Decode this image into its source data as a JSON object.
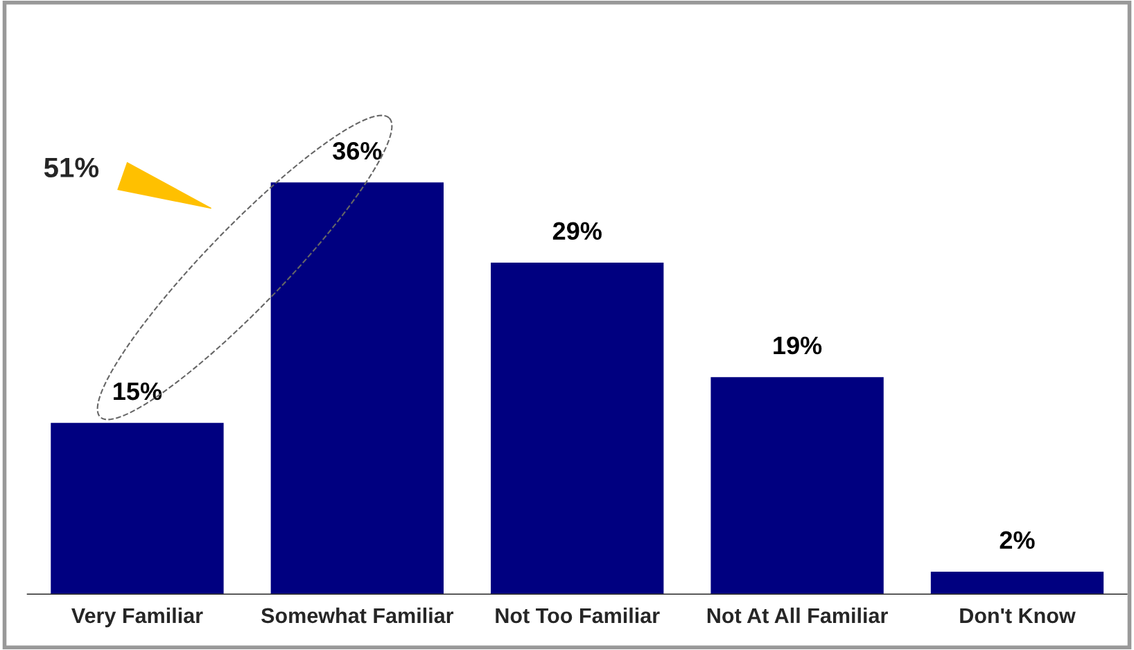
{
  "chart_data": {
    "type": "bar",
    "categories": [
      "Very Familiar",
      "Somewhat Familiar",
      "Not Too Familiar",
      "Not At All Familiar",
      "Don't Know"
    ],
    "values": [
      15,
      36,
      29,
      19,
      2
    ],
    "value_labels": [
      "15%",
      "36%",
      "29%",
      "19%",
      "2%"
    ],
    "color": "#000080",
    "tick_labels": "x",
    "grid": false,
    "legend": false,
    "annotations": [
      "51%"
    ]
  }
}
